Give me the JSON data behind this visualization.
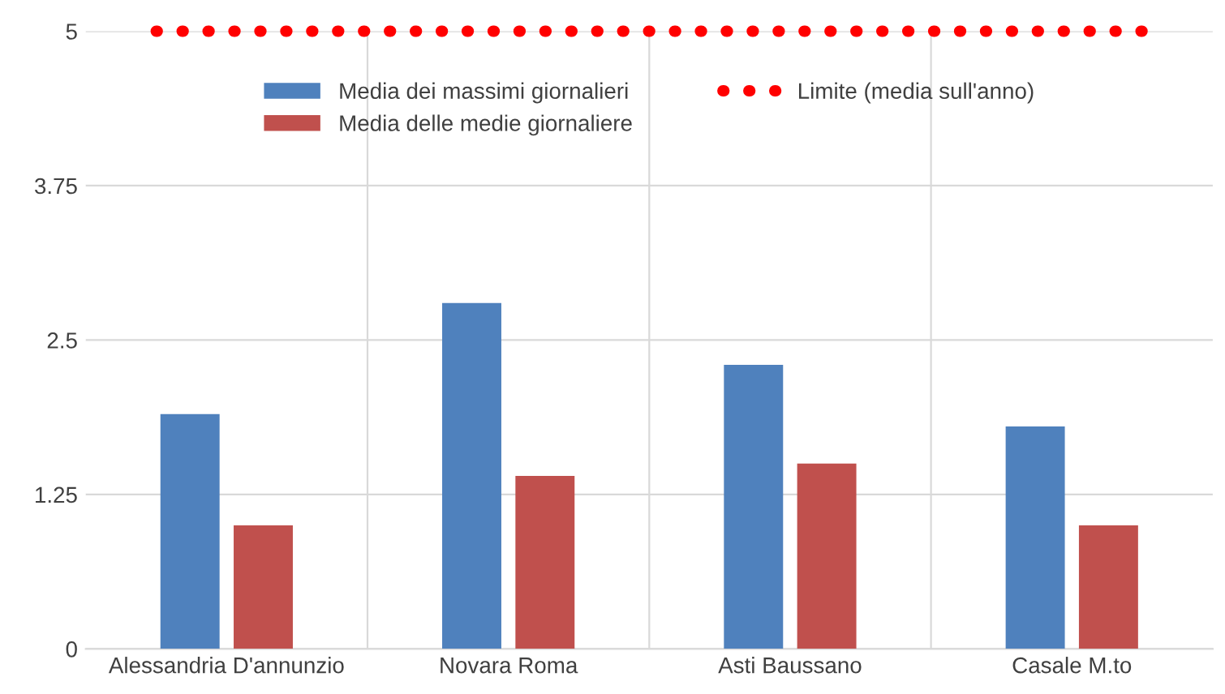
{
  "chart_data": {
    "type": "bar",
    "categories": [
      "Alessandria D'annunzio",
      "Novara Roma",
      "Asti Baussano",
      "Casale M.to"
    ],
    "series": [
      {
        "name": "Media dei massimi giornalieri",
        "color": "#4f81bd",
        "values": [
          1.9,
          2.8,
          2.3,
          1.8
        ]
      },
      {
        "name": "Media delle medie giornaliere",
        "color": "#c0504d",
        "values": [
          1.0,
          1.4,
          1.5,
          1.0
        ]
      }
    ],
    "ref_lines": [
      {
        "axis": "y",
        "value": 5,
        "label": "Limite (media sull'anno)",
        "color": "#ff0000",
        "line_style": "dotted"
      }
    ],
    "ylim": [
      0,
      5
    ],
    "yticks": [
      0,
      {
        "value": 1.25,
        "label": "1.25"
      },
      {
        "value": 2.5,
        "label": "2.5"
      },
      {
        "value": 3.75,
        "label": "3.75"
      },
      5
    ],
    "grid": true,
    "legend": "top"
  }
}
